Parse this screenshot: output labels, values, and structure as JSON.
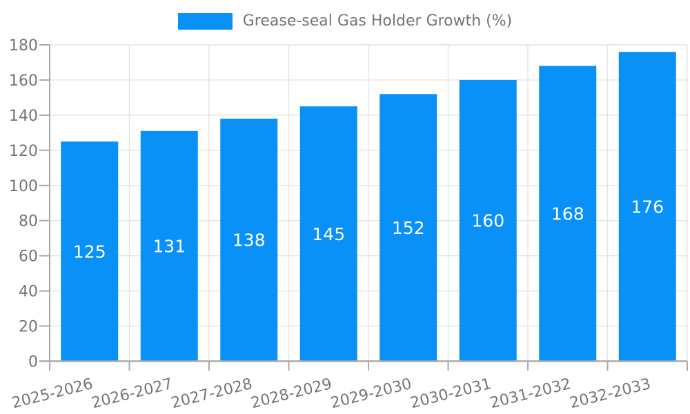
{
  "legend": {
    "label": "Grease-seal Gas Holder Growth (%)"
  },
  "chart_data": {
    "type": "bar",
    "title": "Grease-seal Gas Holder Growth (%)",
    "series_name": "Grease-seal Gas Holder Growth (%)",
    "categories": [
      "2025-2026",
      "2026-2027",
      "2027-2028",
      "2028-2029",
      "2029-2030",
      "2030-2031",
      "2031-2032",
      "2032-2033"
    ],
    "values": [
      125,
      131,
      138,
      145,
      152,
      160,
      168,
      176
    ],
    "xlabel": "",
    "ylabel": "",
    "ylim": [
      0,
      180
    ],
    "ytick_step": 20,
    "ytick_labels": [
      "0",
      "20",
      "40",
      "60",
      "80",
      "100",
      "120",
      "140",
      "160",
      "180"
    ],
    "grid": true,
    "legend_position": "top-center",
    "value_labels": "inside-center",
    "x_label_rotation_deg": -14
  },
  "colors": {
    "bar": "#0a91f7",
    "axis": "#a9a9a9",
    "grid": "#e3e3e3",
    "text": "#757575",
    "value_label": "#ffffff",
    "background": "#ffffff"
  }
}
